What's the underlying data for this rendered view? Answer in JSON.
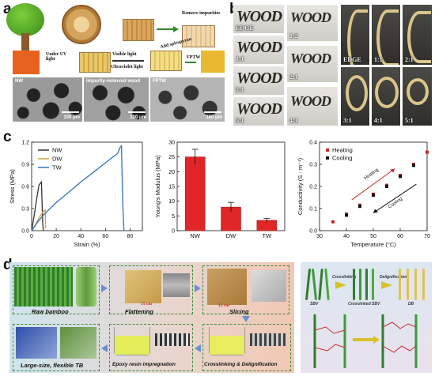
{
  "panel_labels": {
    "a": "a",
    "b": "b",
    "c": "c",
    "d": "d"
  },
  "panel_a": {
    "step_remove": "Remove impurities",
    "step_spiropyran": "Add spiropyran",
    "step_uv": "Under UV light",
    "step_visible": "Visible light",
    "step_ultraviolet": "Ultraviolet light",
    "product": "FPTW",
    "sem": [
      {
        "label": "NW",
        "scale": "100 μm"
      },
      {
        "label": "impurity-removed wood",
        "scale": "100 μm"
      },
      {
        "label": "FPTW",
        "scale": "100 μm"
      }
    ]
  },
  "panel_b": {
    "word": "WOOD",
    "flat_left": [
      "EDGE",
      "1:1",
      "3:1",
      "5:1"
    ],
    "flat_right": [
      "1:2",
      "2:1",
      "4:1"
    ],
    "bent_top": [
      "EDGE",
      "1:1",
      "2:1"
    ],
    "bent_bottom": [
      "3:1",
      "4:1",
      "5:1"
    ]
  },
  "chart_data": [
    {
      "type": "line",
      "xlabel": "Strain (%)",
      "ylabel": "Stress (MPa)",
      "xlim": [
        0,
        90
      ],
      "ylim": [
        0,
        1.2
      ],
      "xticks": [
        0,
        20,
        40,
        60,
        80
      ],
      "yticks": [
        0.0,
        0.3,
        0.6,
        0.9,
        1.2
      ],
      "legend_position": "top-left",
      "series": [
        {
          "name": "NW",
          "color": "#333333",
          "x": [
            0,
            2,
            4,
            6,
            8,
            9,
            9.5
          ],
          "y": [
            0,
            0.2,
            0.42,
            0.62,
            0.66,
            0.1,
            0.0
          ]
        },
        {
          "name": "DW",
          "color": "#d4a03a",
          "x": [
            0,
            3,
            6,
            9,
            11,
            11.3
          ],
          "y": [
            0,
            0.08,
            0.17,
            0.25,
            0.28,
            0.03
          ]
        },
        {
          "name": "TW",
          "color": "#2f72c4",
          "x": [
            0,
            5,
            10,
            20,
            30,
            40,
            50,
            60,
            70,
            72,
            73,
            74,
            75
          ],
          "y": [
            0,
            0.12,
            0.22,
            0.38,
            0.52,
            0.66,
            0.79,
            0.92,
            1.05,
            1.13,
            1.15,
            0.4,
            0.0
          ]
        }
      ]
    },
    {
      "type": "bar",
      "xlabel": "",
      "ylabel": "Young's Modulus (MPa)",
      "ylim": [
        0,
        30
      ],
      "yticks": [
        0,
        5,
        10,
        15,
        20,
        25,
        30
      ],
      "categories": [
        "NW",
        "DW",
        "TW"
      ],
      "values": [
        25.0,
        8.0,
        3.5
      ],
      "errors": [
        2.6,
        1.6,
        0.7
      ],
      "bar_color": "#e02626"
    },
    {
      "type": "scatter",
      "xlabel": "Temperature (°C)",
      "ylabel": "Conductivity (S · m⁻¹)",
      "xlim": [
        30,
        70
      ],
      "ylim": [
        0.0,
        0.4
      ],
      "xticks": [
        30,
        40,
        50,
        60,
        70
      ],
      "yticks": [
        0.0,
        0.1,
        0.2,
        0.3,
        0.4
      ],
      "legend_position": "top-left",
      "series": [
        {
          "name": "Heating",
          "color": "#c62828",
          "x": [
            35,
            40,
            45,
            50,
            55,
            60,
            65,
            70
          ],
          "y": [
            0.04,
            0.075,
            0.115,
            0.165,
            0.205,
            0.25,
            0.3,
            0.355
          ]
        },
        {
          "name": "Cooling",
          "color": "#111111",
          "x": [
            40,
            45,
            50,
            55,
            60,
            65
          ],
          "y": [
            0.07,
            0.11,
            0.16,
            0.2,
            0.245,
            0.295
          ]
        }
      ],
      "annotations": [
        "Heating",
        "Cooling"
      ]
    }
  ],
  "panel_d": {
    "steps": [
      "Raw bamboo",
      "Flattening",
      "Slicing",
      "Crosslinking & Delignification",
      "Epoxy resin impregnation",
      "Large-size, flexible TB"
    ],
    "scale_1": "15 cm",
    "scale_2": "15 cm",
    "schematic": {
      "crosslinking": "Crosslinking",
      "delignification": "Delignification",
      "label_sbv": "SBV",
      "label_csbv": "Crosslinked SBV",
      "label_db": "DB"
    }
  }
}
